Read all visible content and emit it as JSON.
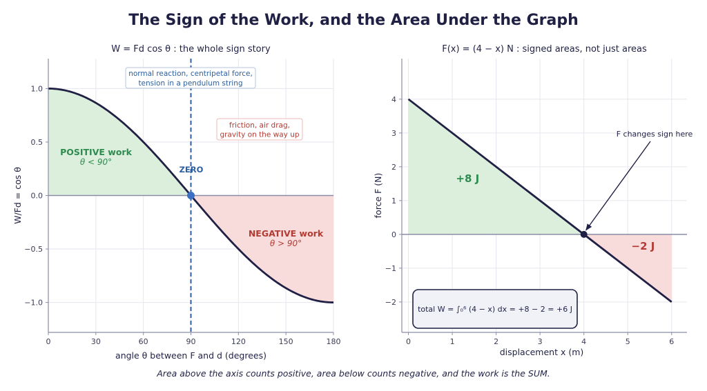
{
  "title": "The Sign of the Work, and the Area Under the Graph",
  "caption": "Area above the axis counts positive, area below counts negative, and the work is the SUM.",
  "colors": {
    "navy": "#1f2044",
    "positive_fill": "#dcefdc",
    "positive_text": "#2e8b4f",
    "negative_fill": "#f8dcdc",
    "negative_text": "#b23b34",
    "marker_blue": "#3a6fc4",
    "dash_blue": "#2d5fa0",
    "grid": "#e6e6ee",
    "axis": "#8a8ca6"
  },
  "chart_data": [
    {
      "type": "line",
      "subtitle": "W = Fd cos θ : the whole sign story",
      "xlabel": "angle θ between F and d  (degrees)",
      "ylabel": "W/Fd = cos θ",
      "xlim": [
        0,
        180
      ],
      "ylim": [
        -1.28,
        1.28
      ],
      "xticks": [
        0,
        30,
        60,
        90,
        120,
        150,
        180
      ],
      "yticks": [
        1.0,
        0.5,
        0.0,
        -0.5,
        -1.0
      ],
      "ytick_labels": [
        "1.0",
        "0.5",
        "0.0",
        "−0.5",
        "−1.0"
      ],
      "grid": true,
      "series": [
        {
          "function": "cos(theta)",
          "x_range": [
            0,
            180
          ]
        }
      ],
      "marked_point": {
        "x": 90,
        "y": 0
      },
      "vertical_line": {
        "x": 90,
        "style": "dashed"
      },
      "annotations": {
        "zero_box": "normal reaction, centripetal force,\ntension in a pendulum string",
        "negative_box": "friction, air drag,\ngravity on the way up",
        "zero_label": "ZERO",
        "positive_label": "POSITIVE work",
        "positive_sub": "θ < 90°",
        "negative_label": "NEGATIVE work",
        "negative_sub": "θ > 90°"
      }
    },
    {
      "type": "line",
      "subtitle": "F(x) = (4 − x) N : signed areas, not just areas",
      "xlabel": "displacement  x  (m)",
      "ylabel": "force  F  (N)",
      "xlim": [
        -0.15,
        6.35
      ],
      "ylim": [
        -2.9,
        5.2
      ],
      "xticks": [
        0,
        1,
        2,
        3,
        4,
        5,
        6
      ],
      "yticks": [
        4,
        3,
        2,
        1,
        0,
        -1,
        -2
      ],
      "ytick_labels": [
        "4",
        "3",
        "2",
        "1",
        "0",
        "−1",
        "−2"
      ],
      "grid": true,
      "series": [
        {
          "x": [
            0,
            6
          ],
          "y": [
            4,
            -2
          ]
        }
      ],
      "marked_point": {
        "x": 4,
        "y": 0
      },
      "annotations": {
        "positive_area_label": "+8 J",
        "negative_area_label": "−2 J",
        "arrow_label": "F changes sign here",
        "total_box": "total W = ∫₀⁶ (4 − x) dx = +8 − 2 = +6 J"
      }
    }
  ]
}
